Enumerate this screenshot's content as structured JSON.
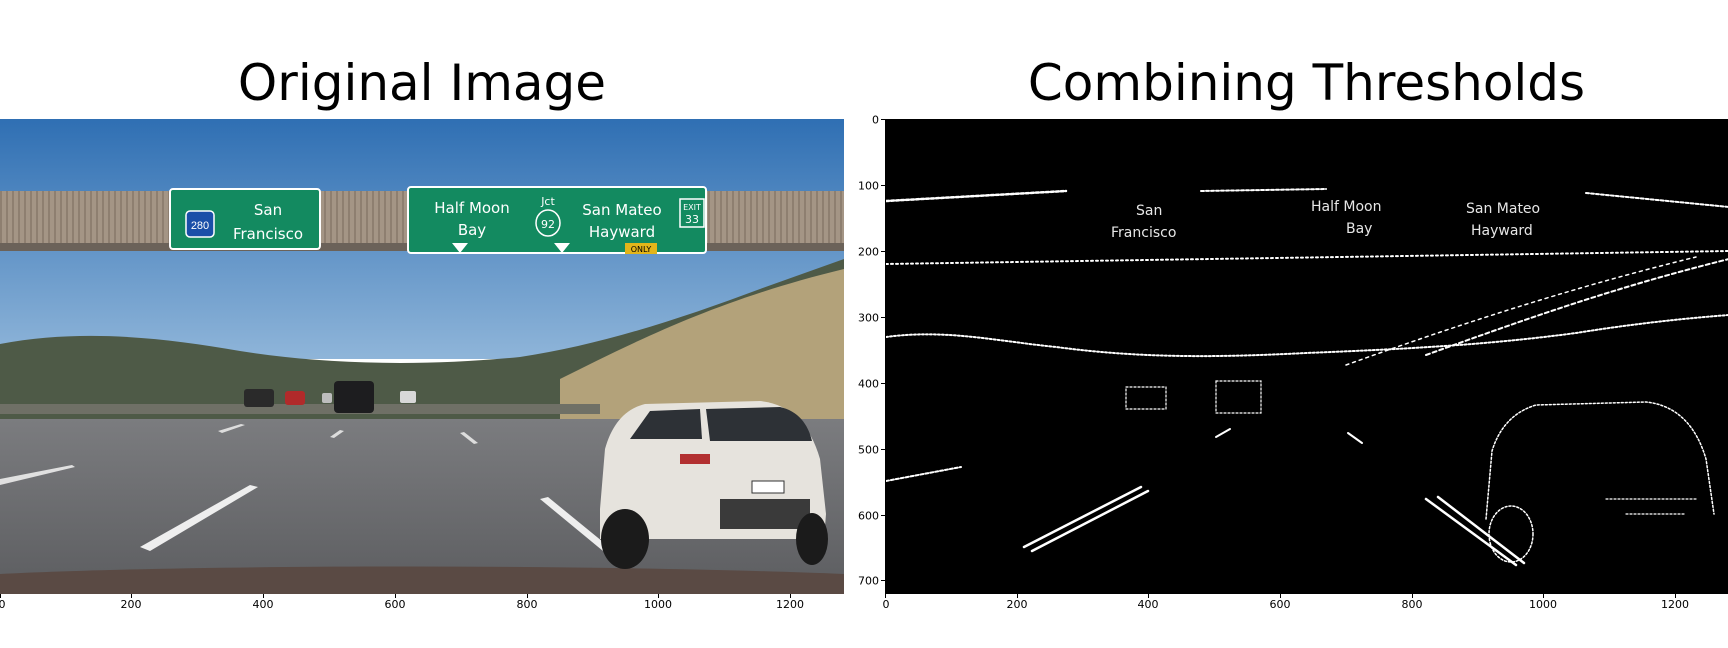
{
  "panels": [
    {
      "title": "Original Image",
      "description_colors": {
        "sky": "#3f7fbf",
        "sign_green": "#138a60",
        "bridge": "#9e8f7f",
        "road": "#6e6e6e",
        "car": "#e9e6e0"
      },
      "signs": [
        {
          "shield": "280",
          "line1": "San",
          "line2": "Francisco"
        },
        {
          "line1": "Half Moon",
          "line2": "Bay",
          "jct": "Jct",
          "route": "92",
          "line3": "San Mateo",
          "line4": "Hayward",
          "exit_label": "EXIT",
          "exit_num": "33",
          "only": "ONLY"
        }
      ],
      "xticks": [
        "0",
        "200",
        "400",
        "600",
        "800",
        "1000",
        "1200"
      ]
    },
    {
      "title": "Combining Thresholds",
      "xticks": [
        "0",
        "200",
        "400",
        "600",
        "800",
        "1000",
        "1200"
      ],
      "yticks": [
        "0",
        "100",
        "200",
        "300",
        "400",
        "500",
        "600",
        "700"
      ]
    }
  ]
}
